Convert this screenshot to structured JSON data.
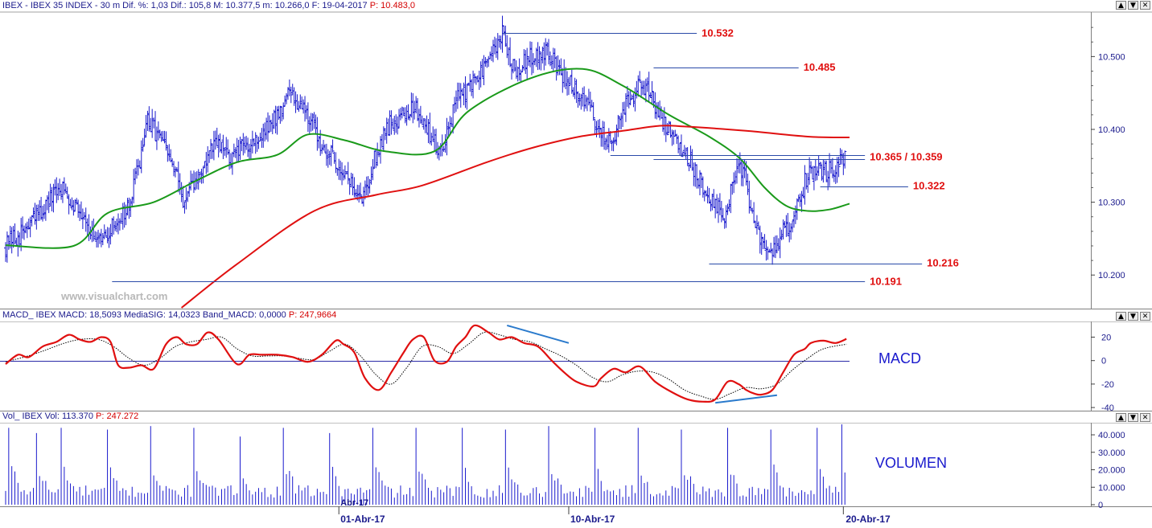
{
  "panels": {
    "price": {
      "header": {
        "main": "IBEX - IBEX 35 INDEX -  30 m Dif. %: 1,03 Dif.: 105,8 M: 10.377,5 m: 10.266,0 F: 19-04-2017",
        "p": "P: 10.483,0"
      }
    },
    "macd": {
      "header": {
        "main": "MACD_ IBEX MACD: 18,5093 MediaSIG: 14,0323 Band_MACD: 0,0000",
        "p": "P: 247,9664"
      },
      "label": "MACD"
    },
    "volume": {
      "header": {
        "main": "Vol_ IBEX Vol: 113.370",
        "p": "P: 247.272"
      },
      "label": "VOLUMEN"
    }
  },
  "watermark": "www.visualchart.com",
  "window_buttons": [
    "▲",
    "▼",
    "✕"
  ],
  "colors": {
    "price_bars": "#1a1acd",
    "sma_short": "#1a9a1a",
    "sma_long": "#e01010",
    "level_lines": "#2a4aa8",
    "level_labels": "#e01010",
    "macd_line": "#e01010",
    "signal_line": "#000000",
    "divergence_lines": "#2a7acc",
    "volume_bars": "#1a1acd",
    "axis_text": "#1a1a8c"
  },
  "chart_data": [
    {
      "type": "bar",
      "subtype": "ohlc",
      "title": "IBEX - IBEX 35 INDEX - 30 m",
      "timeframe": "30 m",
      "x_labels": [
        "01-Abr-17",
        "10-Abr-17",
        "20-Abr-17"
      ],
      "x_label_abbrev": "Abr-17",
      "y_ticks": [
        "10.500",
        "10.400",
        "10.300",
        "10.200"
      ],
      "ylim": [
        10.155,
        10.56
      ],
      "close_path": [
        [
          0,
          10.24
        ],
        [
          6,
          10.25
        ],
        [
          12,
          10.26
        ],
        [
          20,
          10.28
        ],
        [
          28,
          10.3
        ],
        [
          36,
          10.32
        ],
        [
          44,
          10.3
        ],
        [
          52,
          10.28
        ],
        [
          58,
          10.24
        ],
        [
          64,
          10.25
        ],
        [
          74,
          10.28
        ],
        [
          80,
          10.29
        ],
        [
          86,
          10.35
        ],
        [
          92,
          10.41
        ],
        [
          100,
          10.39
        ],
        [
          108,
          10.35
        ],
        [
          116,
          10.3
        ],
        [
          126,
          10.34
        ],
        [
          136,
          10.38
        ],
        [
          146,
          10.36
        ],
        [
          156,
          10.38
        ],
        [
          166,
          10.39
        ],
        [
          176,
          10.42
        ],
        [
          184,
          10.45
        ],
        [
          194,
          10.43
        ],
        [
          202,
          10.39
        ],
        [
          212,
          10.36
        ],
        [
          220,
          10.34
        ],
        [
          230,
          10.3
        ],
        [
          236,
          10.34
        ],
        [
          246,
          10.4
        ],
        [
          256,
          10.42
        ],
        [
          266,
          10.43
        ],
        [
          276,
          10.39
        ],
        [
          282,
          10.37
        ],
        [
          292,
          10.44
        ],
        [
          302,
          10.46
        ],
        [
          312,
          10.49
        ],
        [
          322,
          10.53
        ],
        [
          330,
          10.48
        ],
        [
          340,
          10.5
        ],
        [
          350,
          10.51
        ],
        [
          356,
          10.49
        ],
        [
          366,
          10.46
        ],
        [
          376,
          10.44
        ],
        [
          384,
          10.4
        ],
        [
          392,
          10.38
        ],
        [
          402,
          10.43
        ],
        [
          410,
          10.46
        ],
        [
          418,
          10.45
        ],
        [
          424,
          10.42
        ],
        [
          432,
          10.39
        ],
        [
          440,
          10.37
        ],
        [
          448,
          10.34
        ],
        [
          458,
          10.3
        ],
        [
          466,
          10.28
        ],
        [
          472,
          10.33
        ],
        [
          478,
          10.35
        ],
        [
          484,
          10.28
        ],
        [
          490,
          10.24
        ],
        [
          496,
          10.23
        ],
        [
          502,
          10.25
        ],
        [
          508,
          10.27
        ],
        [
          514,
          10.3
        ],
        [
          520,
          10.34
        ],
        [
          526,
          10.345
        ],
        [
          532,
          10.34
        ],
        [
          538,
          10.35
        ],
        [
          544,
          10.366
        ]
      ],
      "n_bars": 545,
      "series": [
        {
          "name": "MA short",
          "color": "#1a9a1a",
          "x": [
            0,
            44,
            66,
            96,
            124,
            150,
            176,
            196,
            220,
            246,
            278,
            300,
            340,
            374,
            400,
            430,
            456,
            476,
            492,
            506,
            520,
            534,
            547
          ],
          "values": [
            10.241,
            10.24,
            10.285,
            10.3,
            10.33,
            10.355,
            10.365,
            10.393,
            10.385,
            10.37,
            10.37,
            10.425,
            10.47,
            10.483,
            10.46,
            10.42,
            10.39,
            10.36,
            10.32,
            10.295,
            10.288,
            10.29,
            10.298
          ]
        },
        {
          "name": "MA long",
          "color": "#e01010",
          "x": [
            114,
            150,
            200,
            240,
            270,
            312,
            342,
            372,
            400,
            424,
            440,
            480,
            520,
            547
          ],
          "values": [
            10.155,
            10.215,
            10.288,
            10.31,
            10.323,
            10.355,
            10.375,
            10.39,
            10.398,
            10.405,
            10.404,
            10.398,
            10.39,
            10.389
          ]
        }
      ],
      "levels": [
        {
          "label": "10.532",
          "value": 10.532,
          "x": [
            322,
            448
          ]
        },
        {
          "label": "10.485",
          "value": 10.485,
          "x": [
            420,
            514
          ]
        },
        {
          "label": "10.365 / 10.359",
          "value": 10.362,
          "x": [
            392,
            557
          ],
          "sub": [
            {
              "value": 10.365,
              "x": [
                392,
                557
              ]
            },
            {
              "value": 10.359,
              "x": [
                420,
                557
              ]
            }
          ]
        },
        {
          "label": "10.322",
          "value": 10.322,
          "x": [
            528,
            585
          ]
        },
        {
          "label": "10.216",
          "value": 10.216,
          "x": [
            456,
            594
          ]
        },
        {
          "label": "10.191",
          "value": 10.191,
          "x": [
            69,
            557
          ]
        }
      ],
      "vertical_markers_x": [
        216,
        365,
        543
      ]
    },
    {
      "type": "line",
      "title": "MACD_ IBEX",
      "y_ticks": [
        "20",
        "0",
        "-20",
        "-40"
      ],
      "ylim": [
        -42,
        32
      ],
      "zero_line": 0,
      "series": [
        {
          "name": "MACD",
          "color": "#e01010",
          "x": [
            0,
            8,
            15,
            24,
            33,
            41,
            48,
            55,
            62,
            68,
            73,
            80,
            88,
            96,
            104,
            111,
            117,
            124,
            131,
            138,
            150,
            158,
            166,
            176,
            186,
            196,
            205,
            214,
            219,
            226,
            233,
            242,
            250,
            258,
            264,
            271,
            278,
            286,
            292,
            298,
            304,
            313,
            320,
            328,
            336,
            345,
            354,
            362,
            370,
            381,
            386,
            394,
            402,
            411,
            421,
            432,
            442,
            452,
            460,
            468,
            475,
            480,
            485,
            490,
            497,
            504,
            511,
            518,
            522,
            530,
            538,
            545
          ],
          "values": [
            -3,
            5,
            3,
            12,
            16,
            22,
            18,
            16,
            20,
            16,
            -4,
            -6,
            -4,
            -7,
            14,
            20,
            14,
            14,
            24,
            18,
            -3,
            5,
            5,
            5,
            3,
            -1,
            5,
            17,
            14,
            7,
            -15,
            -25,
            -10,
            7,
            18,
            20,
            0,
            -1,
            12,
            20,
            30,
            24,
            18,
            20,
            15,
            12,
            0,
            -10,
            -18,
            -22,
            -15,
            -7,
            -10,
            -5,
            -18,
            -27,
            -33,
            -35,
            -33,
            -18,
            -20,
            -25,
            -28,
            -29,
            -25,
            -10,
            5,
            10,
            15,
            17,
            15,
            18.5
          ]
        },
        {
          "name": "MediaSIG",
          "color": "#000000",
          "x": [
            0,
            12,
            24,
            36,
            48,
            60,
            70,
            80,
            90,
            100,
            110,
            120,
            130,
            140,
            150,
            160,
            170,
            180,
            190,
            200,
            210,
            220,
            230,
            240,
            250,
            260,
            270,
            280,
            290,
            300,
            310,
            320,
            330,
            340,
            350,
            360,
            370,
            380,
            390,
            400,
            410,
            420,
            430,
            440,
            450,
            460,
            470,
            480,
            490,
            500,
            510,
            520,
            530,
            545
          ],
          "values": [
            -1,
            3,
            8,
            14,
            18,
            18,
            12,
            2,
            -4,
            2,
            12,
            16,
            18,
            20,
            10,
            4,
            4,
            4,
            2,
            1,
            8,
            14,
            4,
            -12,
            -20,
            -6,
            12,
            12,
            6,
            14,
            24,
            22,
            18,
            16,
            10,
            4,
            -4,
            -14,
            -18,
            -12,
            -9,
            -10,
            -16,
            -25,
            -30,
            -33,
            -28,
            -23,
            -24,
            -20,
            -8,
            2,
            10,
            14
          ]
        }
      ],
      "divergence_lines": [
        {
          "x": [
            325,
            365
          ],
          "values": [
            30,
            15
          ]
        },
        {
          "x": [
            460,
            500
          ],
          "values": [
            -36,
            -29.5
          ]
        }
      ]
    },
    {
      "type": "bar",
      "title": "Vol_ IBEX",
      "y_ticks": [
        "40.000",
        "30.000",
        "20.000",
        "10.000",
        "0"
      ],
      "ylim": [
        0,
        46000
      ],
      "session_peak_x": [
        3,
        20,
        37,
        66,
        94,
        123,
        152,
        181,
        210,
        239,
        266,
        296,
        325,
        353,
        382,
        410,
        439,
        468,
        497,
        526,
        543
      ],
      "session_peak_values": [
        44000,
        41000,
        44000,
        43000,
        45000,
        44000,
        39000,
        44000,
        41000,
        44000,
        44000,
        44000,
        43000,
        45000,
        44000,
        44000,
        43000,
        44000,
        43000,
        44000,
        46000
      ],
      "base_volume": [
        4000,
        16000
      ]
    }
  ]
}
